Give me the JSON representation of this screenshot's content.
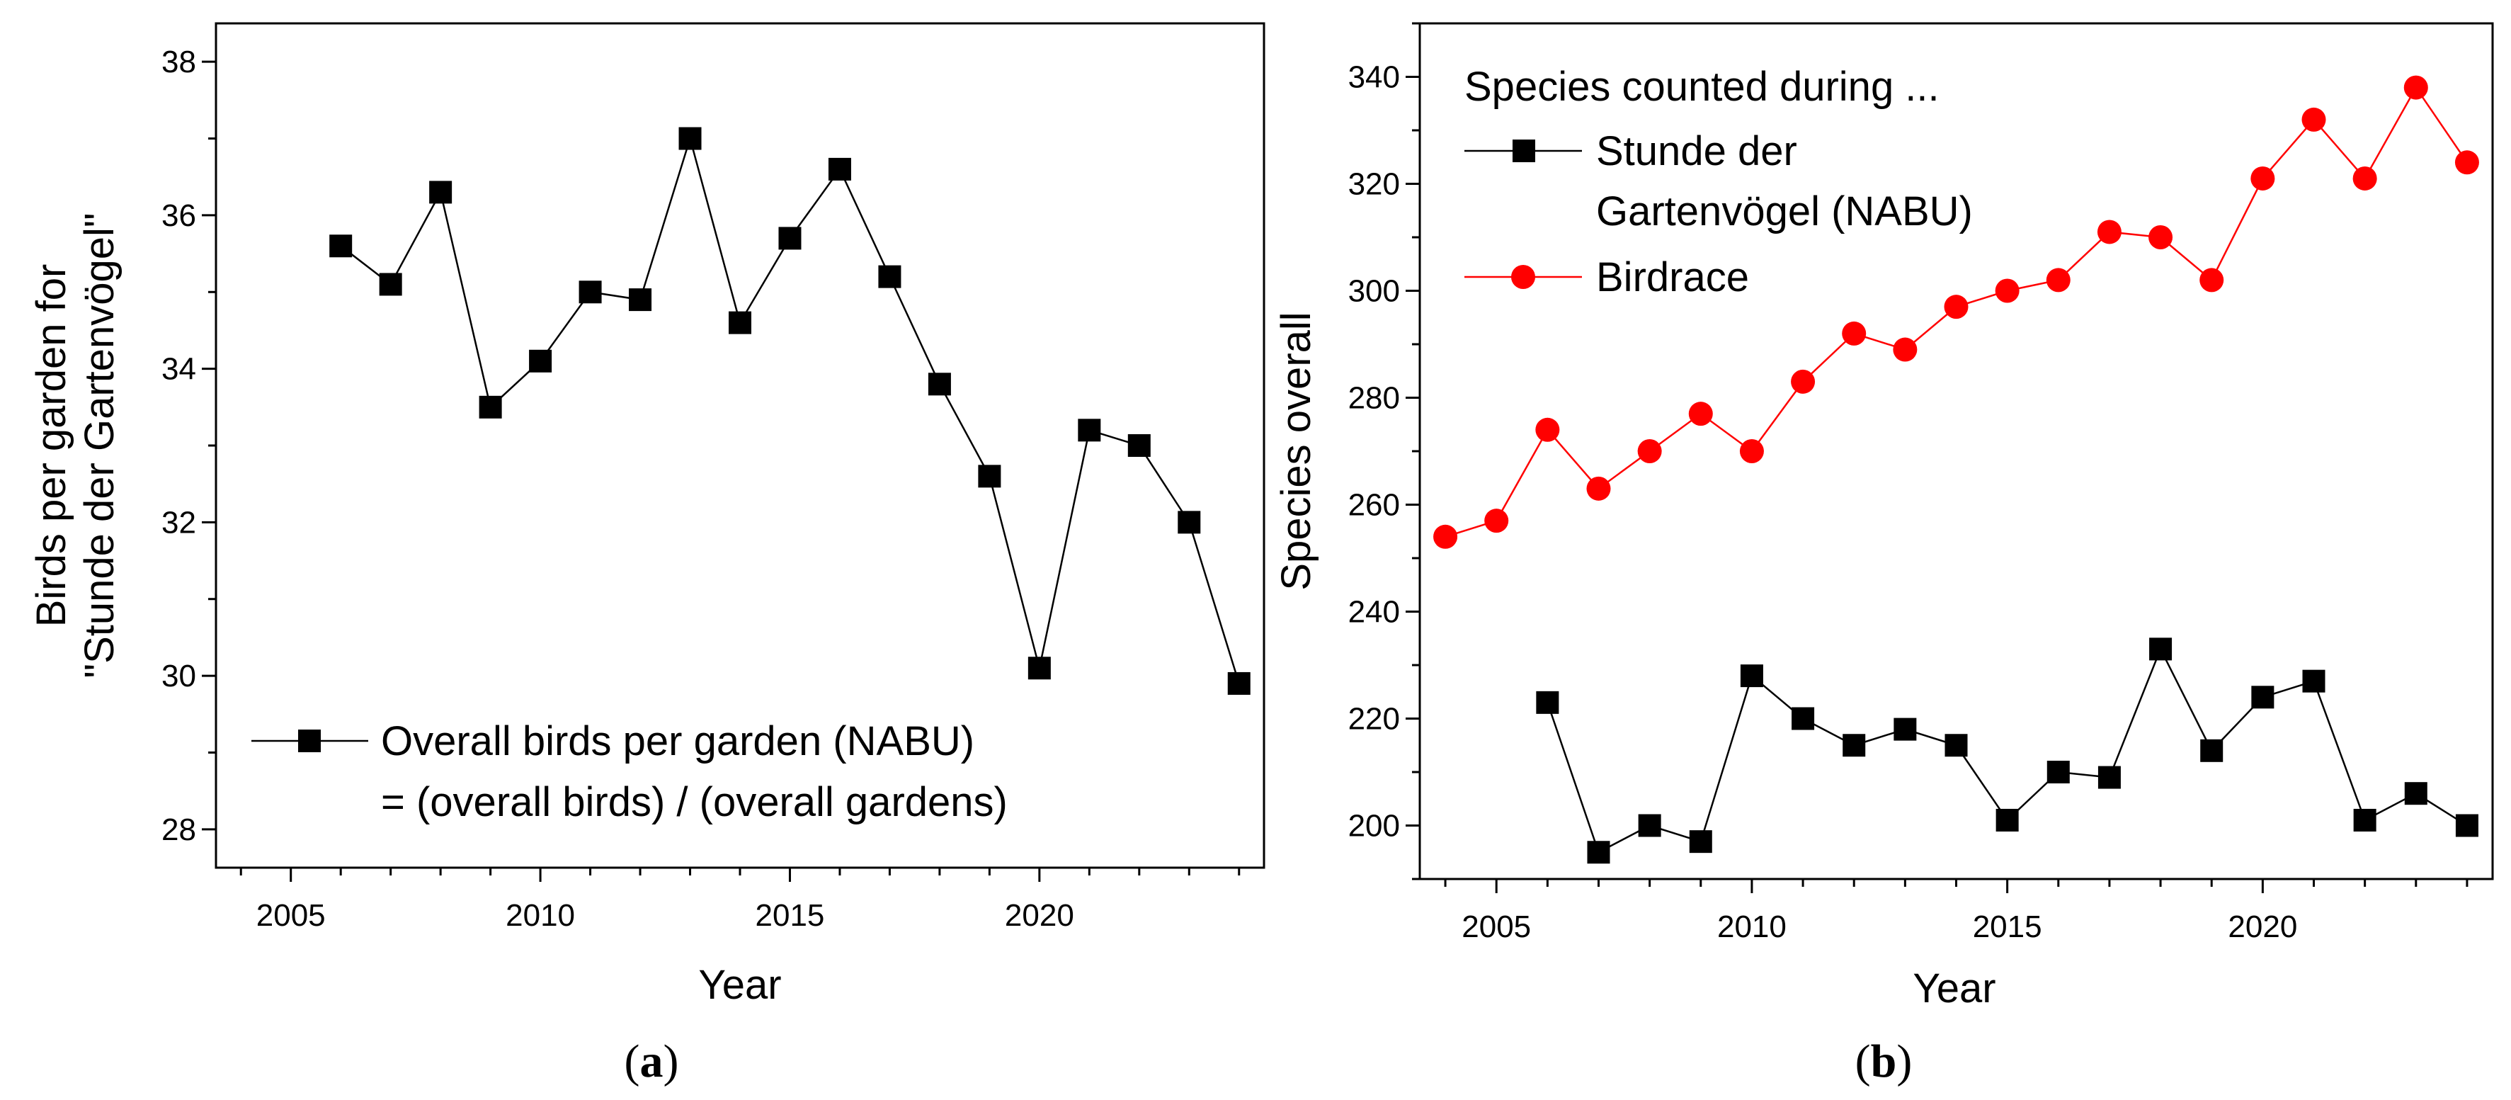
{
  "chart_data": [
    {
      "id": "a",
      "type": "line",
      "caption": {
        "open": "(",
        "letter": "a",
        "close": ")"
      },
      "xlabel": "Year",
      "ylabel": [
        "Birds per garden for",
        "\"Stunde der Gartenvögel\""
      ],
      "xlim": [
        2003.5,
        2024.5
      ],
      "ylim": [
        27.5,
        38.5
      ],
      "xticks": [
        2005,
        2010,
        2015,
        2020
      ],
      "yticks": [
        28,
        30,
        32,
        34,
        36,
        38
      ],
      "legend": {
        "lines": [
          "Overall birds per garden (NABU)",
          "= (overall birds) / (overall gardens)"
        ],
        "placement": "bottom"
      },
      "series": [
        {
          "name": "Overall birds per garden (NABU)",
          "color": "#000000",
          "marker": "square",
          "x": [
            2006,
            2007,
            2008,
            2009,
            2010,
            2011,
            2012,
            2013,
            2014,
            2015,
            2016,
            2017,
            2018,
            2019,
            2020,
            2021,
            2022,
            2023,
            2024
          ],
          "y": [
            35.6,
            35.1,
            36.3,
            33.5,
            34.1,
            35.0,
            34.9,
            37.0,
            34.6,
            35.7,
            36.6,
            35.2,
            33.8,
            32.6,
            30.1,
            33.2,
            33.0,
            32.0,
            29.9
          ]
        }
      ]
    },
    {
      "id": "b",
      "type": "line",
      "caption": {
        "open": "(",
        "letter": "b",
        "close": ")"
      },
      "xlabel": "Year",
      "ylabel": [
        "Species overall"
      ],
      "xlim": [
        2003.5,
        2024.5
      ],
      "ylim": [
        190,
        350
      ],
      "xticks": [
        2005,
        2010,
        2015,
        2020
      ],
      "yticks": [
        200,
        220,
        240,
        260,
        280,
        300,
        320,
        340
      ],
      "legend": {
        "title": "Species counted during ...",
        "entries": [
          {
            "lines": [
              "Stunde der",
              "Gartenvögel (NABU)"
            ],
            "series": 0
          },
          {
            "lines": [
              "Birdrace"
            ],
            "series": 1
          }
        ],
        "placement": "top-left"
      },
      "series": [
        {
          "name": "Stunde der Gartenvögel (NABU)",
          "color": "#000000",
          "marker": "square",
          "x": [
            2006,
            2007,
            2008,
            2009,
            2010,
            2011,
            2012,
            2013,
            2014,
            2015,
            2016,
            2017,
            2018,
            2019,
            2020,
            2021,
            2022,
            2023,
            2024
          ],
          "y": [
            223,
            195,
            200,
            197,
            228,
            220,
            215,
            218,
            215,
            201,
            210,
            209,
            233,
            214,
            224,
            227,
            201,
            206,
            200
          ]
        },
        {
          "name": "Birdrace",
          "color": "#ff0000",
          "marker": "circle",
          "x": [
            2004,
            2005,
            2006,
            2007,
            2008,
            2009,
            2010,
            2011,
            2012,
            2013,
            2014,
            2015,
            2016,
            2017,
            2018,
            2019,
            2020,
            2021,
            2022,
            2023,
            2024
          ],
          "y": [
            254,
            257,
            274,
            263,
            270,
            277,
            270,
            283,
            292,
            289,
            297,
            300,
            302,
            311,
            310,
            302,
            321,
            332,
            321,
            338,
            324
          ]
        }
      ]
    }
  ]
}
